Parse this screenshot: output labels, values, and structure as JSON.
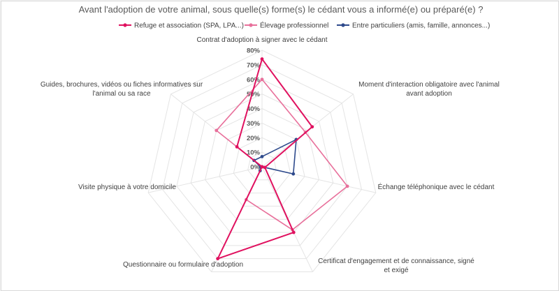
{
  "chart_data": {
    "type": "radar",
    "title": "Avant l'adoption de votre animal, sous quelle(s) forme(s) le cédant vous a informé(e) ou préparé(e) ?",
    "categories": [
      "Contrat d'adoption à signer avec le cédant",
      "Moment d'interaction obligatoire avec l'animal avant adoption",
      "Échange téléphonique avec le cédant",
      "Certificat d'engagement et de connaissance, signé et exigé",
      "Questionnaire ou formulaire d'adoption",
      "Visite physique à votre domicile",
      "Guides, brochures, vidéos ou fiches informatives sur l'animal ou sa race"
    ],
    "category_lines": [
      [
        "Contrat d'adoption à signer avec le cédant"
      ],
      [
        "Moment d'interaction obligatoire avec l'animal",
        "avant adoption"
      ],
      [
        "Échange téléphonique avec le cédant"
      ],
      [
        "Certificat d'engagement et de connaissance, signé",
        "et exigé"
      ],
      [
        "Questionnaire ou formulaire d'adoption"
      ],
      [
        "Visite physique à votre domicile"
      ],
      [
        "Guides, brochures, vidéos ou fiches informatives sur",
        "l'animal ou sa race"
      ]
    ],
    "ticks": [
      "0%",
      "10%",
      "20%",
      "30%",
      "40%",
      "50%",
      "60%",
      "70%",
      "80%"
    ],
    "rlim": [
      0,
      80
    ],
    "grid": true,
    "legend_position": "top",
    "series": [
      {
        "name": "Refuge et association (SPA, LPA...)",
        "color": "#e0115f",
        "values": [
          74,
          44,
          2,
          50,
          70,
          0,
          22
        ]
      },
      {
        "name": "Élevage professionnel",
        "color": "#e8709b",
        "values": [
          60,
          38,
          60,
          48,
          25,
          0,
          40
        ]
      },
      {
        "name": "Entre particuliers (amis, famille, annonces...)",
        "color": "#2e4a8c",
        "values": [
          7,
          30,
          22,
          0,
          3,
          1,
          7
        ]
      }
    ]
  }
}
